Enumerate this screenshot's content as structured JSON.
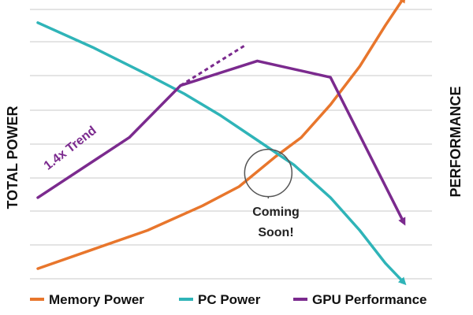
{
  "chart_data": {
    "type": "line",
    "ylabel_left": "TOTAL POWER",
    "ylabel_right": "PERFORMANCE",
    "grid": true,
    "xlim": [
      0,
      100
    ],
    "ylim": [
      0,
      100
    ],
    "series": [
      {
        "name": "Memory Power",
        "color": "#e8762c",
        "x": [
          0,
          15,
          30,
          45,
          55,
          65,
          72,
          80,
          88,
          95,
          100
        ],
        "y": [
          4,
          11,
          18,
          27,
          34,
          45,
          52,
          64,
          78,
          93,
          103
        ]
      },
      {
        "name": "PC Power",
        "color": "#2fb4b8",
        "x": [
          0,
          15,
          30,
          40,
          50,
          60,
          70,
          80,
          88,
          95,
          100
        ],
        "y": [
          94,
          85,
          75,
          68,
          60,
          51,
          42,
          30,
          18,
          6,
          -1
        ]
      },
      {
        "name": "GPU Performance",
        "color": "#7b2a8e",
        "x": [
          0,
          25,
          39,
          60,
          80,
          100
        ],
        "y": [
          30,
          52,
          71,
          80,
          74,
          21
        ]
      }
    ],
    "trend_line": {
      "x": [
        39,
        57
      ],
      "y": [
        71,
        86
      ]
    },
    "annotations": {
      "trend": "1.4x Trend",
      "circle_text_line1": "Coming",
      "circle_text_line2": "Soon!",
      "circle_at": {
        "x": 63,
        "y": 39
      }
    },
    "legend_placement": "bottom"
  }
}
